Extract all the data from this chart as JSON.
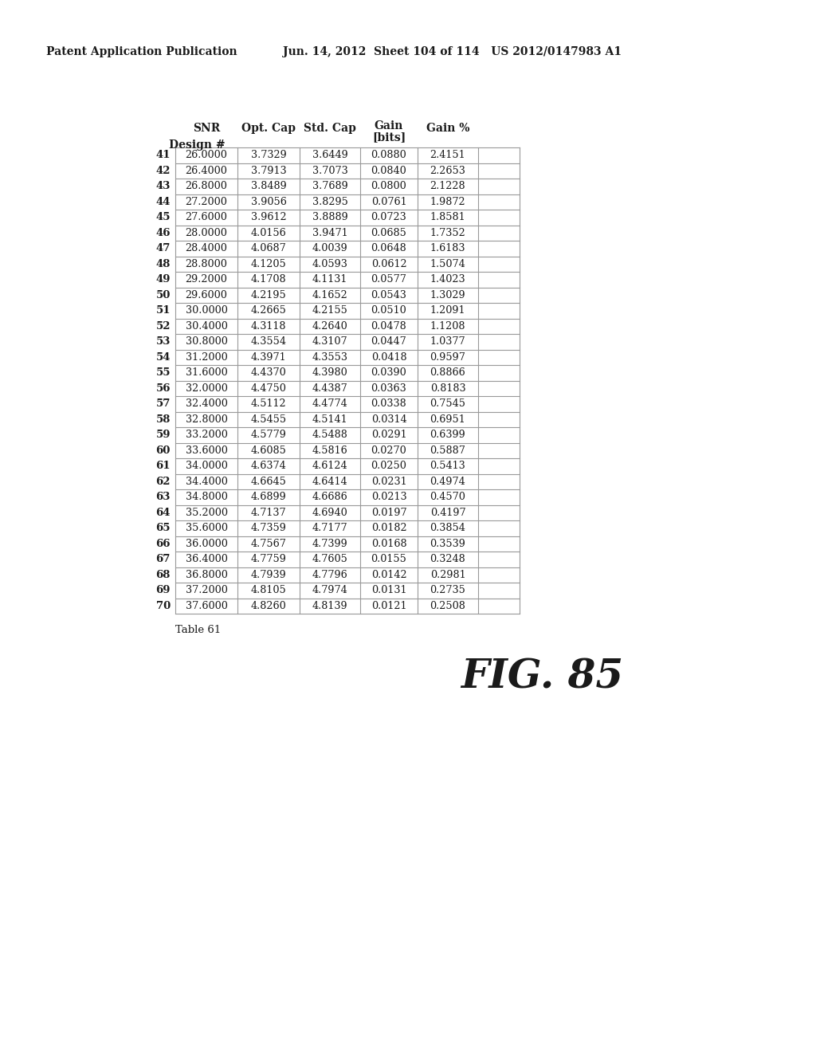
{
  "header_left": "Patent Application Publication",
  "header_right": "Jun. 14, 2012  Sheet 104 of 114   US 2012/0147983 A1",
  "col_headers_l1": [
    "SNR",
    "Opt. Cap",
    "Std. Cap",
    "Gain",
    "Gain %"
  ],
  "col_headers_l2": [
    "",
    "",
    "",
    "[bits]",
    ""
  ],
  "design_label": "Design #",
  "rows": [
    [
      41,
      26.0,
      3.7329,
      3.6449,
      0.088,
      2.4151
    ],
    [
      42,
      26.4,
      3.7913,
      3.7073,
      0.084,
      2.2653
    ],
    [
      43,
      26.8,
      3.8489,
      3.7689,
      0.08,
      2.1228
    ],
    [
      44,
      27.2,
      3.9056,
      3.8295,
      0.0761,
      1.9872
    ],
    [
      45,
      27.6,
      3.9612,
      3.8889,
      0.0723,
      1.8581
    ],
    [
      46,
      28.0,
      4.0156,
      3.9471,
      0.0685,
      1.7352
    ],
    [
      47,
      28.4,
      4.0687,
      4.0039,
      0.0648,
      1.6183
    ],
    [
      48,
      28.8,
      4.1205,
      4.0593,
      0.0612,
      1.5074
    ],
    [
      49,
      29.2,
      4.1708,
      4.1131,
      0.0577,
      1.4023
    ],
    [
      50,
      29.6,
      4.2195,
      4.1652,
      0.0543,
      1.3029
    ],
    [
      51,
      30.0,
      4.2665,
      4.2155,
      0.051,
      1.2091
    ],
    [
      52,
      30.4,
      4.3118,
      4.264,
      0.0478,
      1.1208
    ],
    [
      53,
      30.8,
      4.3554,
      4.3107,
      0.0447,
      1.0377
    ],
    [
      54,
      31.2,
      4.3971,
      4.3553,
      0.0418,
      0.9597
    ],
    [
      55,
      31.6,
      4.437,
      4.398,
      0.039,
      0.8866
    ],
    [
      56,
      32.0,
      4.475,
      4.4387,
      0.0363,
      0.8183
    ],
    [
      57,
      32.4,
      4.5112,
      4.4774,
      0.0338,
      0.7545
    ],
    [
      58,
      32.8,
      4.5455,
      4.5141,
      0.0314,
      0.6951
    ],
    [
      59,
      33.2,
      4.5779,
      4.5488,
      0.0291,
      0.6399
    ],
    [
      60,
      33.6,
      4.6085,
      4.5816,
      0.027,
      0.5887
    ],
    [
      61,
      34.0,
      4.6374,
      4.6124,
      0.025,
      0.5413
    ],
    [
      62,
      34.4,
      4.6645,
      4.6414,
      0.0231,
      0.4974
    ],
    [
      63,
      34.8,
      4.6899,
      4.6686,
      0.0213,
      0.457
    ],
    [
      64,
      35.2,
      4.7137,
      4.694,
      0.0197,
      0.4197
    ],
    [
      65,
      35.6,
      4.7359,
      4.7177,
      0.0182,
      0.3854
    ],
    [
      66,
      36.0,
      4.7567,
      4.7399,
      0.0168,
      0.3539
    ],
    [
      67,
      36.4,
      4.7759,
      4.7605,
      0.0155,
      0.3248
    ],
    [
      68,
      36.8,
      4.7939,
      4.7796,
      0.0142,
      0.2981
    ],
    [
      69,
      37.2,
      4.8105,
      4.7974,
      0.0131,
      0.2735
    ],
    [
      70,
      37.6,
      4.826,
      4.8139,
      0.0121,
      0.2508
    ]
  ],
  "table_label": "Table 61",
  "fig_label": "FIG. 85",
  "bg_color": "#ffffff",
  "text_color": "#1a1a1a",
  "grid_color": "#999999"
}
